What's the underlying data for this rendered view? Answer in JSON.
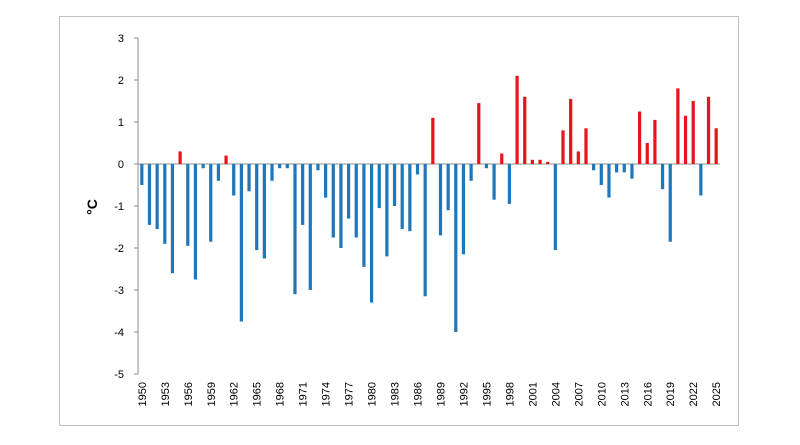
{
  "chart_data": {
    "type": "bar",
    "title": "",
    "xlabel": "",
    "ylabel": "°C",
    "ylim": [
      -5,
      3
    ],
    "yticks": [
      "3",
      "2",
      "1",
      "0",
      "-1",
      "-2",
      "-3",
      "-4",
      "-5"
    ],
    "xtick_labels": [
      "1950",
      "1953",
      "1956",
      "1959",
      "1962",
      "1965",
      "1968",
      "1971",
      "1974",
      "1977",
      "1980",
      "1983",
      "1986",
      "1989",
      "1992",
      "1995",
      "1998",
      "2001",
      "2004",
      "2007",
      "2010",
      "2013",
      "2016",
      "2019",
      "2022",
      "2025"
    ],
    "grid": false,
    "legend": "none",
    "colors": {
      "positive": "#e8131b",
      "negative": "#1f77b9"
    },
    "categories": [
      1950,
      1951,
      1952,
      1953,
      1954,
      1955,
      1956,
      1957,
      1958,
      1959,
      1960,
      1961,
      1962,
      1963,
      1964,
      1965,
      1966,
      1967,
      1968,
      1969,
      1970,
      1971,
      1972,
      1973,
      1974,
      1975,
      1976,
      1977,
      1978,
      1979,
      1980,
      1981,
      1982,
      1983,
      1984,
      1985,
      1986,
      1987,
      1988,
      1989,
      1990,
      1991,
      1992,
      1993,
      1994,
      1995,
      1996,
      1997,
      1998,
      1999,
      2000,
      2001,
      2002,
      2003,
      2004,
      2005,
      2006,
      2007,
      2008,
      2009,
      2010,
      2011,
      2012,
      2013,
      2014,
      2015,
      2016,
      2017,
      2018,
      2019,
      2020,
      2021,
      2022,
      2023,
      2024,
      2025
    ],
    "values": [
      -0.5,
      -1.45,
      -1.55,
      -1.9,
      -2.6,
      0.3,
      -1.95,
      -2.75,
      -0.1,
      -1.85,
      -0.4,
      0.2,
      -0.75,
      -3.75,
      -0.65,
      -2.05,
      -2.25,
      -0.4,
      -0.1,
      -0.1,
      -3.1,
      -1.45,
      -3.0,
      -0.15,
      -0.8,
      -1.75,
      -2.0,
      -1.3,
      -1.75,
      -2.45,
      -3.3,
      -1.05,
      -2.2,
      -1.0,
      -1.55,
      -1.6,
      -0.25,
      -3.15,
      1.1,
      -1.7,
      -1.1,
      -4.0,
      -2.15,
      -0.4,
      1.45,
      -0.1,
      -0.85,
      0.25,
      -0.95,
      2.1,
      1.6,
      0.1,
      0.1,
      0.05,
      -2.05,
      0.8,
      1.55,
      0.3,
      0.85,
      -0.15,
      -0.5,
      -0.8,
      -0.2,
      -0.2,
      -0.35,
      1.25,
      0.5,
      1.05,
      -0.6,
      -1.85,
      1.8,
      1.15,
      1.5,
      -0.75,
      1.6,
      0.85
    ]
  }
}
